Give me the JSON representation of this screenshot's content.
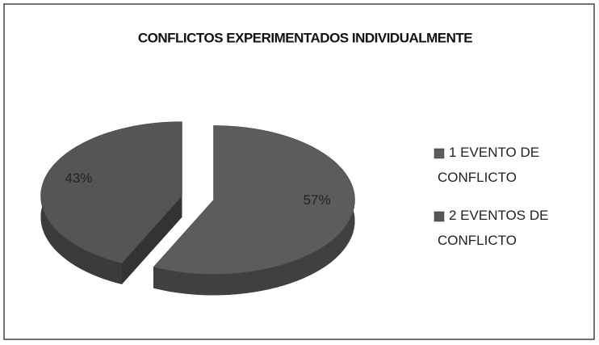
{
  "chart_data": {
    "type": "pie",
    "title": "CONFLICTOS EXPERIMENTADOS INDIVIDUALMENTE",
    "categories": [
      "1 EVENTO DE CONFLICTO",
      "2 EVENTOS DE CONFLICTO"
    ],
    "values": [
      57,
      43
    ],
    "value_labels": [
      "57%",
      "43%"
    ],
    "colors": [
      "#5c5c5c",
      "#555555"
    ],
    "legend": "right"
  }
}
